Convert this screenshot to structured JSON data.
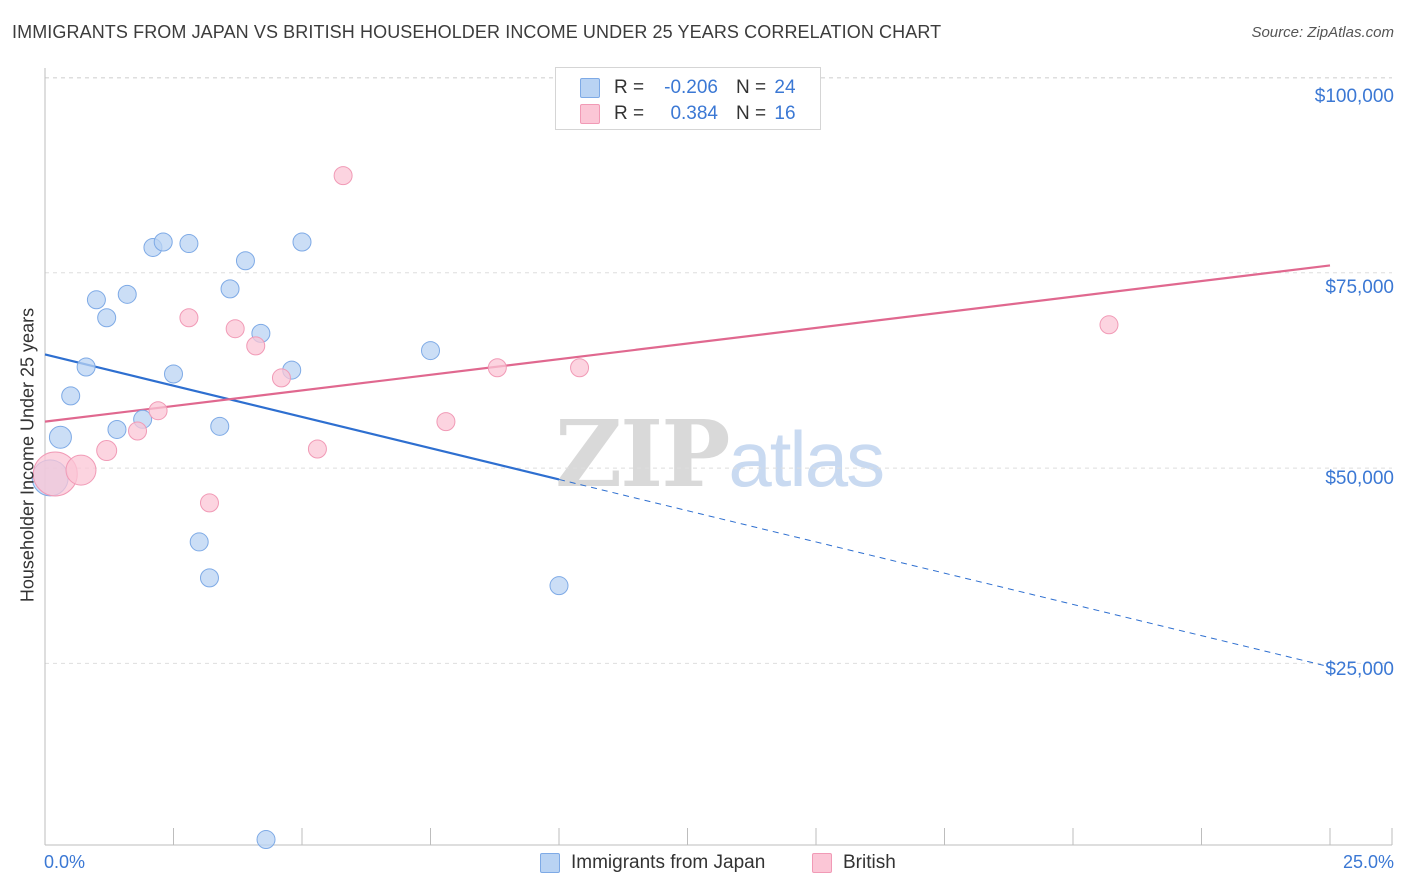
{
  "title": "IMMIGRANTS FROM JAPAN VS BRITISH HOUSEHOLDER INCOME UNDER 25 YEARS CORRELATION CHART",
  "source": "Source: ZipAtlas.com",
  "watermark": {
    "part1": "ZIP",
    "part2": "atlas"
  },
  "legend": {
    "rows": [
      {
        "r_label": "R =",
        "r_value": "-0.206",
        "n_label": "N =",
        "n_value": "24",
        "color": "#b9d3f3",
        "border": "#7eaae6"
      },
      {
        "r_label": "R =",
        "r_value": "0.384",
        "n_label": "N =",
        "n_value": "16",
        "color": "#fbc6d6",
        "border": "#f19ab6"
      }
    ]
  },
  "bottom_legend": [
    {
      "label": "Immigrants from Japan",
      "color": "#b9d3f3",
      "border": "#7eaae6"
    },
    {
      "label": "British",
      "color": "#fbc6d6",
      "border": "#f19ab6"
    }
  ],
  "axes": {
    "ylabel": "Householder Income Under 25 years",
    "x_min_label": "0.0%",
    "x_max_label": "25.0%",
    "y_ticks": [
      "$100,000",
      "$75,000",
      "$50,000",
      "$25,000"
    ]
  },
  "chart_data": {
    "type": "scatter",
    "title": "IMMIGRANTS FROM JAPAN VS BRITISH HOUSEHOLDER INCOME UNDER 25 YEARS CORRELATION CHART",
    "xlabel": "",
    "ylabel": "Householder Income Under 25 years",
    "xlim": [
      0,
      25
    ],
    "ylim": [
      2000,
      102500
    ],
    "x_unit": "%",
    "y_tick_values": [
      100000,
      75000,
      50000,
      25000
    ],
    "grid": true,
    "legend_position": "top-center",
    "series": [
      {
        "name": "Immigrants from Japan",
        "color": "#7eaae6",
        "fill": "#b9d3f3",
        "line_color": "#2e6fd0",
        "trend": {
          "x0": 0,
          "y0": 64800,
          "x1": 25,
          "y1": 24800,
          "solid_until_x": 10
        },
        "points": [
          {
            "x": 0.1,
            "y": 49000,
            "size": 18
          },
          {
            "x": 0.3,
            "y": 54200,
            "size": 11
          },
          {
            "x": 0.5,
            "y": 59500,
            "size": 9
          },
          {
            "x": 0.8,
            "y": 63200,
            "size": 9
          },
          {
            "x": 1.0,
            "y": 71800,
            "size": 9
          },
          {
            "x": 1.2,
            "y": 69500,
            "size": 9
          },
          {
            "x": 1.4,
            "y": 55200,
            "size": 9
          },
          {
            "x": 1.6,
            "y": 72500,
            "size": 9
          },
          {
            "x": 1.9,
            "y": 56500,
            "size": 9
          },
          {
            "x": 2.1,
            "y": 78500,
            "size": 9
          },
          {
            "x": 2.3,
            "y": 79200,
            "size": 9
          },
          {
            "x": 2.5,
            "y": 62300,
            "size": 9
          },
          {
            "x": 2.8,
            "y": 79000,
            "size": 9
          },
          {
            "x": 3.0,
            "y": 40800,
            "size": 9
          },
          {
            "x": 3.2,
            "y": 36200,
            "size": 9
          },
          {
            "x": 3.4,
            "y": 55600,
            "size": 9
          },
          {
            "x": 3.6,
            "y": 73200,
            "size": 9
          },
          {
            "x": 3.9,
            "y": 76800,
            "size": 9
          },
          {
            "x": 4.2,
            "y": 67500,
            "size": 9
          },
          {
            "x": 4.3,
            "y": 2700,
            "size": 9
          },
          {
            "x": 4.8,
            "y": 62800,
            "size": 9
          },
          {
            "x": 5.0,
            "y": 79200,
            "size": 9
          },
          {
            "x": 7.5,
            "y": 65300,
            "size": 9
          },
          {
            "x": 10.0,
            "y": 35200,
            "size": 9
          }
        ]
      },
      {
        "name": "British",
        "color": "#f19ab6",
        "fill": "#fbc6d6",
        "line_color": "#e0688f",
        "trend": {
          "x0": 0,
          "y0": 56200,
          "x1": 25,
          "y1": 76200,
          "solid_until_x": 25
        },
        "points": [
          {
            "x": 0.2,
            "y": 49500,
            "size": 22
          },
          {
            "x": 0.7,
            "y": 50000,
            "size": 15
          },
          {
            "x": 1.2,
            "y": 52500,
            "size": 10
          },
          {
            "x": 1.8,
            "y": 55000,
            "size": 9
          },
          {
            "x": 2.2,
            "y": 57600,
            "size": 9
          },
          {
            "x": 2.8,
            "y": 69500,
            "size": 9
          },
          {
            "x": 3.2,
            "y": 45800,
            "size": 9
          },
          {
            "x": 3.7,
            "y": 68100,
            "size": 9
          },
          {
            "x": 4.1,
            "y": 65900,
            "size": 9
          },
          {
            "x": 4.6,
            "y": 61800,
            "size": 9
          },
          {
            "x": 5.3,
            "y": 52700,
            "size": 9
          },
          {
            "x": 5.8,
            "y": 87700,
            "size": 9
          },
          {
            "x": 7.8,
            "y": 56200,
            "size": 9
          },
          {
            "x": 8.8,
            "y": 63100,
            "size": 9
          },
          {
            "x": 10.4,
            "y": 63100,
            "size": 9
          },
          {
            "x": 20.7,
            "y": 68600,
            "size": 9
          }
        ]
      }
    ]
  }
}
